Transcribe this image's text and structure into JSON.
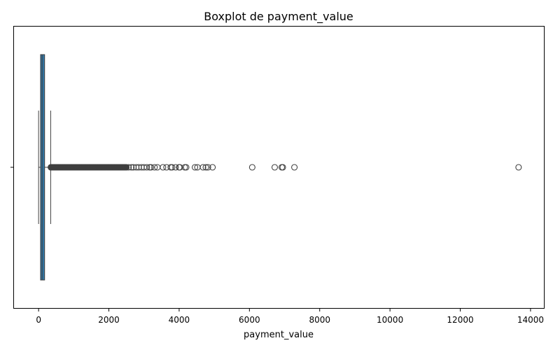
{
  "chart_data": {
    "type": "boxplot",
    "orientation": "horizontal",
    "title": "Boxplot de payment_value",
    "xlabel": "payment_value",
    "ylabel": "",
    "xlim": [
      -700,
      14400
    ],
    "xticks": [
      0,
      2000,
      4000,
      6000,
      8000,
      10000,
      12000,
      14000
    ],
    "grid": false,
    "box": {
      "whisker_low": 0,
      "q1": 56,
      "median": 100,
      "q3": 171,
      "whisker_high": 344,
      "color": "#3274a1"
    },
    "outliers": [
      350,
      380,
      410,
      440,
      470,
      500,
      540,
      580,
      620,
      660,
      700,
      750,
      800,
      860,
      920,
      980,
      1040,
      1100,
      1170,
      1240,
      1310,
      1380,
      1450,
      1520,
      1600,
      1680,
      1760,
      1840,
      1920,
      2000,
      2080,
      2160,
      2240,
      2320,
      2400,
      2480,
      2560,
      2640,
      2700,
      2780,
      2850,
      2930,
      3000,
      3080,
      3160,
      3200,
      3300,
      3380,
      3540,
      3640,
      3760,
      3800,
      3900,
      4000,
      4020,
      4160,
      4200,
      4450,
      4520,
      4680,
      4760,
      4820,
      4950,
      6080,
      6720,
      6920,
      6950,
      7280,
      13660
    ]
  }
}
